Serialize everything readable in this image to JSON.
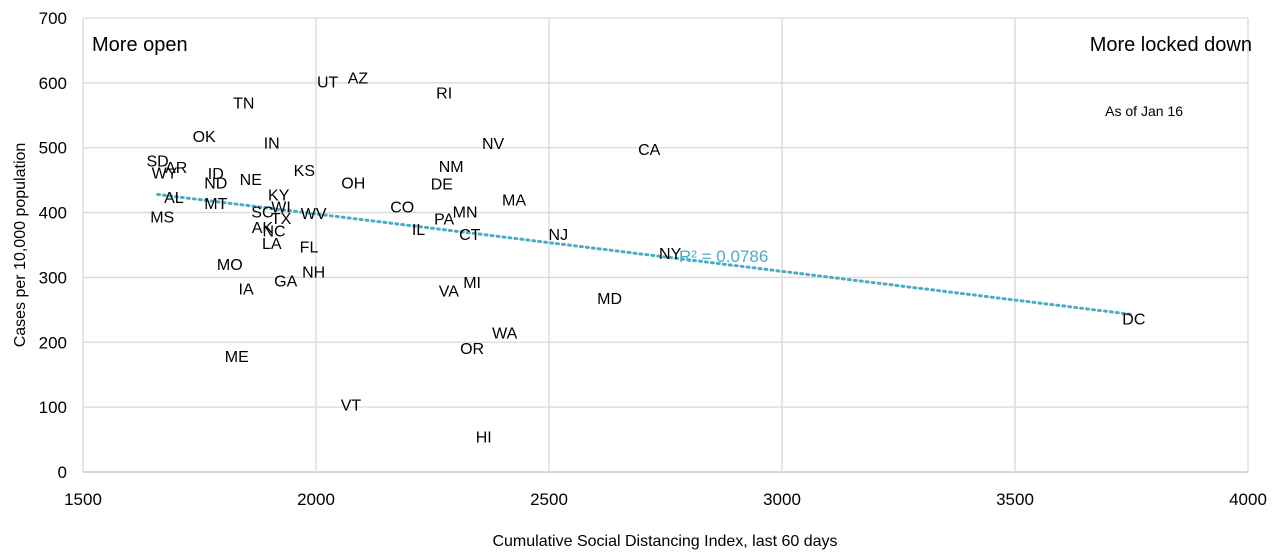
{
  "chart_data": {
    "type": "scatter",
    "xlabel": "Cumulative Social Distancing Index, last 60 days",
    "ylabel": "Cases per 10,000 population",
    "xlim": [
      1500,
      4000
    ],
    "ylim": [
      0,
      700
    ],
    "x_ticks": [
      1500,
      2000,
      2500,
      3000,
      3500,
      4000
    ],
    "y_ticks": [
      0,
      100,
      200,
      300,
      400,
      500,
      600,
      700
    ],
    "grid": true,
    "annotations": {
      "top_left": "More open",
      "top_right": "More locked down",
      "date_note": "As of Jan 16"
    },
    "trendline": {
      "type": "linear",
      "label": "R² = 0.0786",
      "color": "#4bacc6",
      "start": {
        "x": 1660,
        "y": 428
      },
      "end": {
        "x": 3750,
        "y": 243
      }
    },
    "points": [
      {
        "label": "AZ",
        "x": 2090,
        "y": 608
      },
      {
        "label": "UT",
        "x": 2025,
        "y": 602
      },
      {
        "label": "RI",
        "x": 2275,
        "y": 585
      },
      {
        "label": "TN",
        "x": 1845,
        "y": 570
      },
      {
        "label": "OK",
        "x": 1760,
        "y": 518
      },
      {
        "label": "IN",
        "x": 1905,
        "y": 508
      },
      {
        "label": "NV",
        "x": 2380,
        "y": 507
      },
      {
        "label": "CA",
        "x": 2715,
        "y": 498
      },
      {
        "label": "SD",
        "x": 1660,
        "y": 480
      },
      {
        "label": "NM",
        "x": 2290,
        "y": 472
      },
      {
        "label": "AR",
        "x": 1700,
        "y": 470
      },
      {
        "label": "KS",
        "x": 1975,
        "y": 466
      },
      {
        "label": "WY",
        "x": 1675,
        "y": 462
      },
      {
        "label": "ID",
        "x": 1785,
        "y": 461
      },
      {
        "label": "NE",
        "x": 1860,
        "y": 452
      },
      {
        "label": "OH",
        "x": 2080,
        "y": 446
      },
      {
        "label": "ND",
        "x": 1785,
        "y": 446
      },
      {
        "label": "DE",
        "x": 2270,
        "y": 445
      },
      {
        "label": "KY",
        "x": 1920,
        "y": 428
      },
      {
        "label": "AL",
        "x": 1695,
        "y": 424
      },
      {
        "label": "MA",
        "x": 2425,
        "y": 420
      },
      {
        "label": "MT",
        "x": 1785,
        "y": 415
      },
      {
        "label": "WI",
        "x": 1925,
        "y": 409
      },
      {
        "label": "CO",
        "x": 2185,
        "y": 409
      },
      {
        "label": "SC",
        "x": 1885,
        "y": 402
      },
      {
        "label": "MN",
        "x": 2320,
        "y": 402
      },
      {
        "label": "WV",
        "x": 1995,
        "y": 399
      },
      {
        "label": "MS",
        "x": 1670,
        "y": 394
      },
      {
        "label": "TX",
        "x": 1925,
        "y": 392
      },
      {
        "label": "PA",
        "x": 2275,
        "y": 391
      },
      {
        "label": "AK",
        "x": 1885,
        "y": 378
      },
      {
        "label": "NC",
        "x": 1910,
        "y": 372
      },
      {
        "label": "IL",
        "x": 2220,
        "y": 375
      },
      {
        "label": "CT",
        "x": 2330,
        "y": 367
      },
      {
        "label": "NJ",
        "x": 2520,
        "y": 367
      },
      {
        "label": "LA",
        "x": 1905,
        "y": 353
      },
      {
        "label": "FL",
        "x": 1985,
        "y": 348
      },
      {
        "label": "NY",
        "x": 2760,
        "y": 338
      },
      {
        "label": "MO",
        "x": 1815,
        "y": 321
      },
      {
        "label": "NH",
        "x": 1995,
        "y": 309
      },
      {
        "label": "GA",
        "x": 1935,
        "y": 295
      },
      {
        "label": "MI",
        "x": 2335,
        "y": 293
      },
      {
        "label": "IA",
        "x": 1850,
        "y": 283
      },
      {
        "label": "VA",
        "x": 2285,
        "y": 280
      },
      {
        "label": "MD",
        "x": 2630,
        "y": 268
      },
      {
        "label": "DC",
        "x": 3755,
        "y": 237
      },
      {
        "label": "WA",
        "x": 2405,
        "y": 215
      },
      {
        "label": "OR",
        "x": 2335,
        "y": 191
      },
      {
        "label": "ME",
        "x": 1830,
        "y": 179
      },
      {
        "label": "VT",
        "x": 2075,
        "y": 104
      },
      {
        "label": "HI",
        "x": 2360,
        "y": 55
      }
    ]
  }
}
